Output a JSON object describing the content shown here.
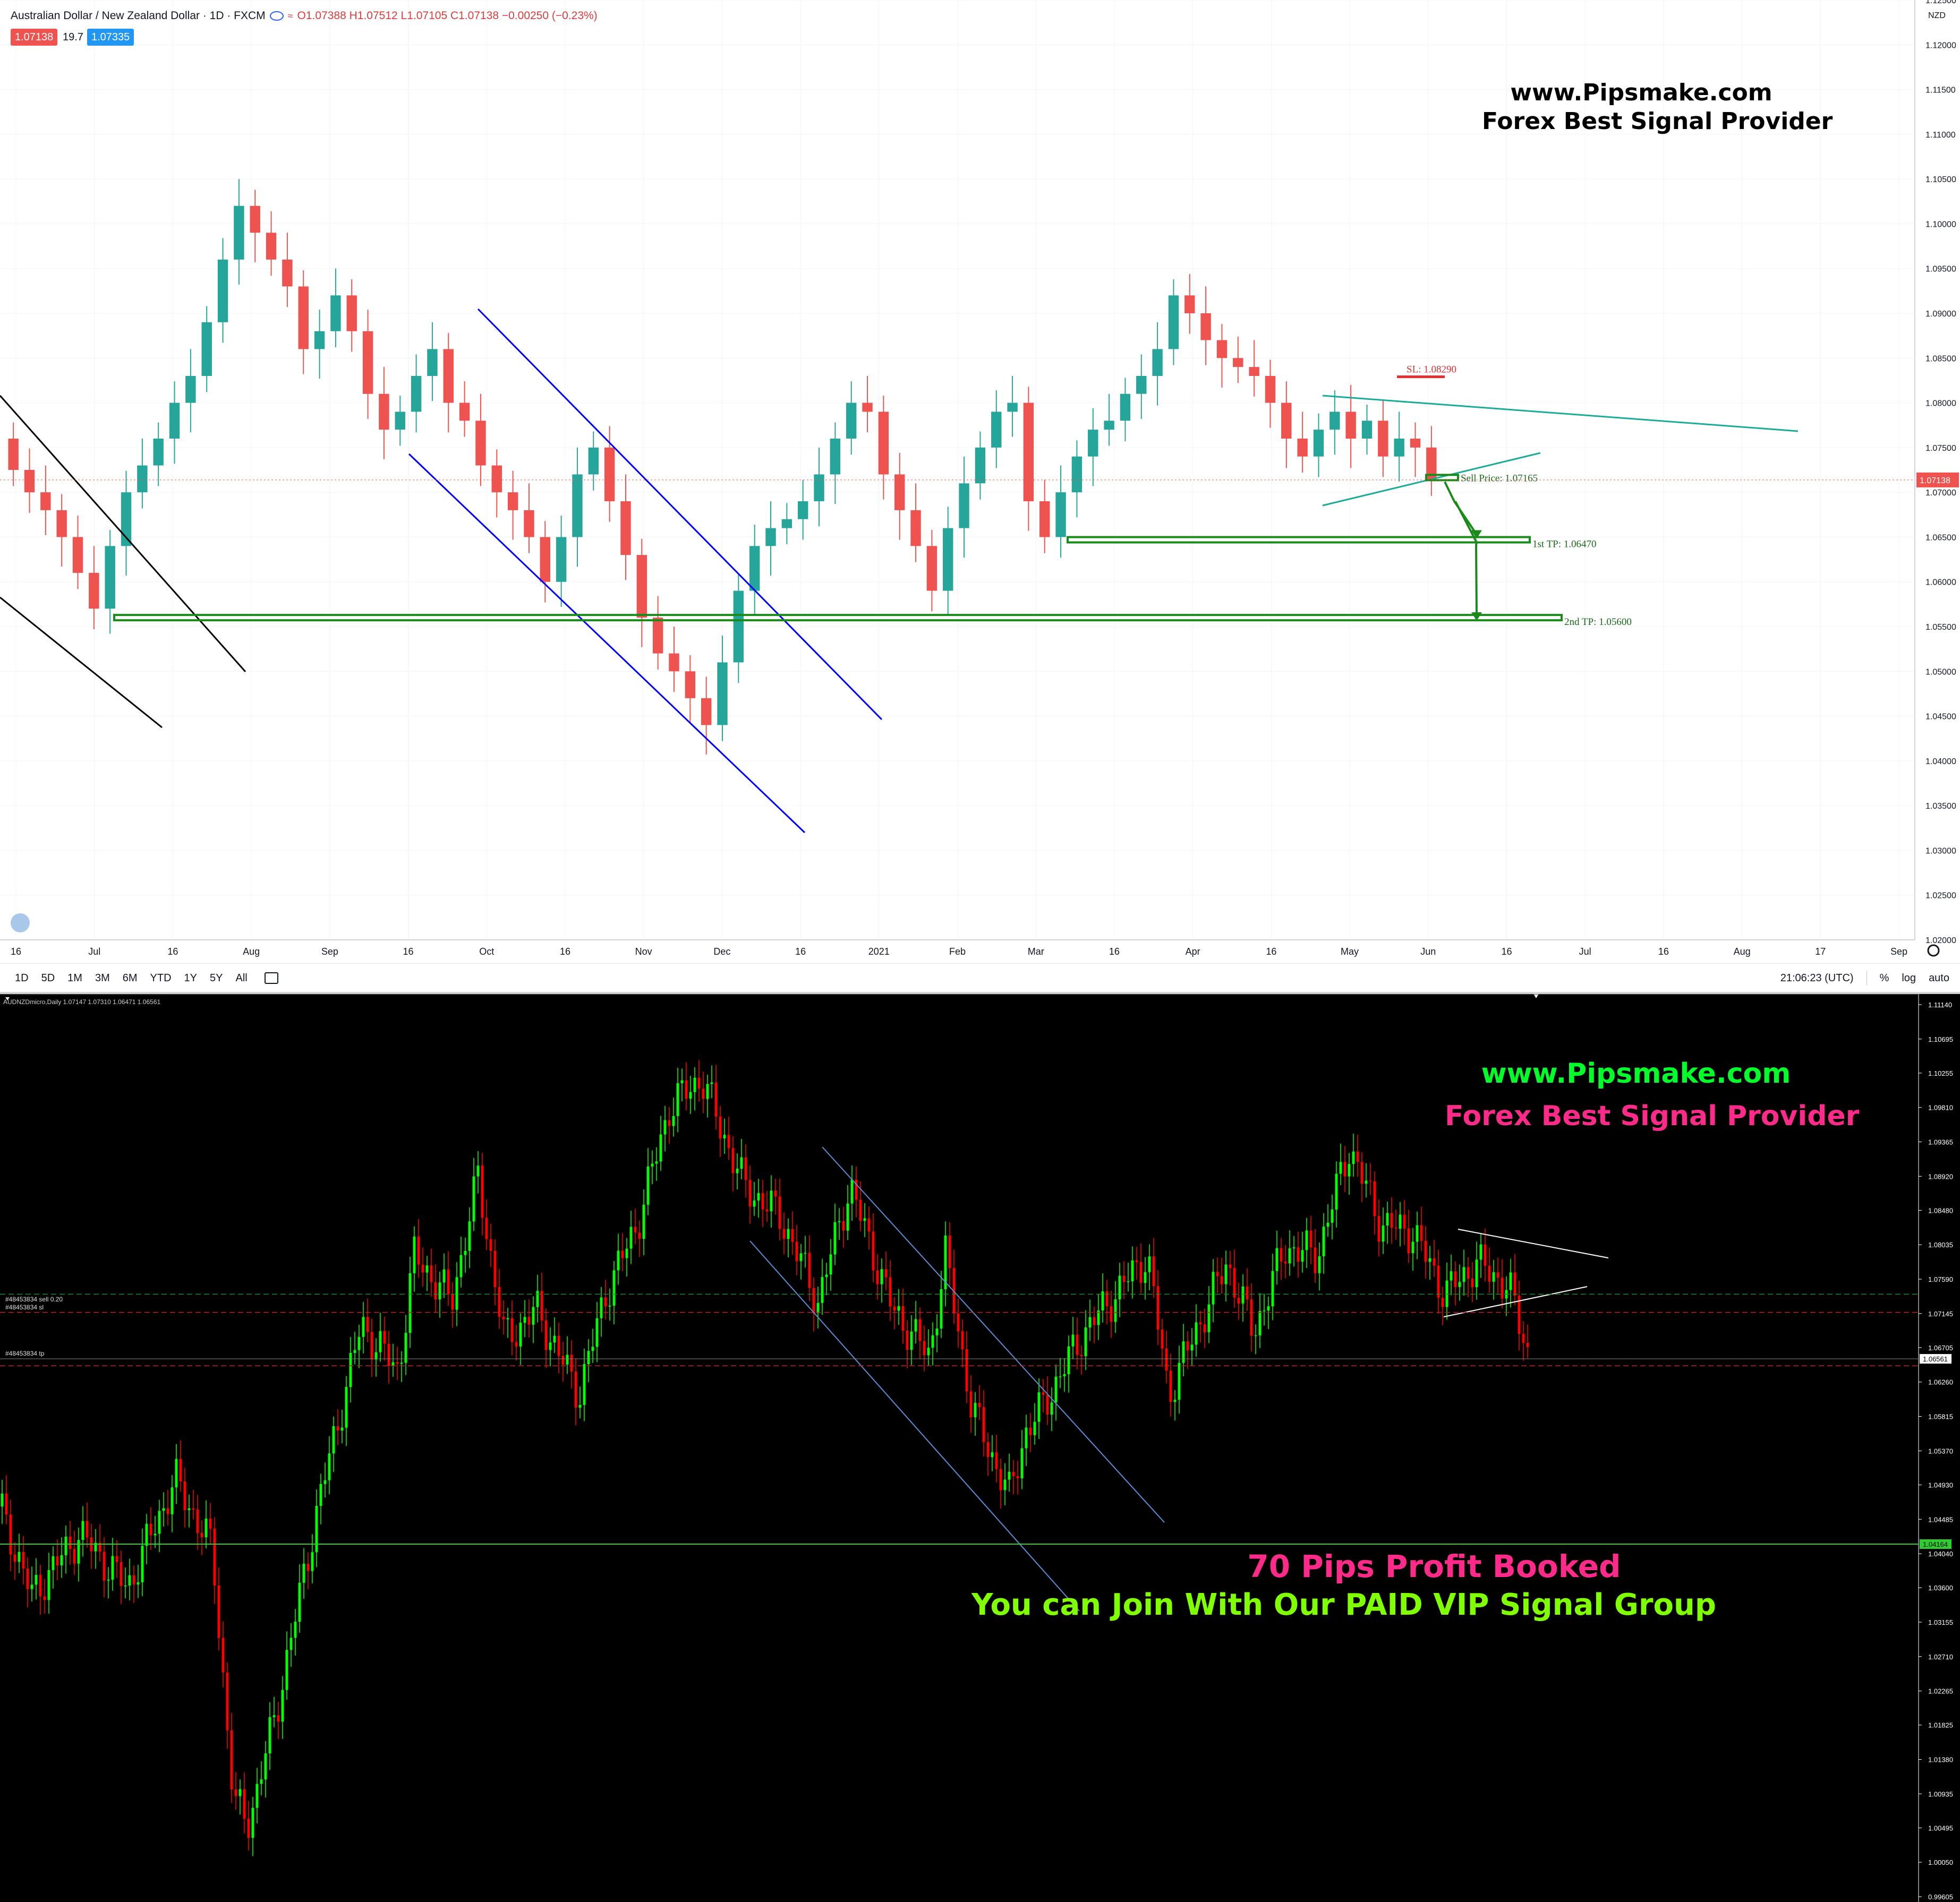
{
  "tradingview": {
    "symbol": "Australian Dollar / New Zealand Dollar · 1D · FXCM",
    "ohlc": "O1.07388 H1.07512 L1.07105 C1.07138 −0.00250 (−0.23%)",
    "sell_price_chip": "1.07138",
    "spread": "19.7",
    "buy_price_chip": "1.07335",
    "currency": "NZD",
    "last_price_label": "1.07138",
    "brand_line1": "www.Pipsmake.com",
    "brand_line2": "Forex Best Signal Provider",
    "annotations": {
      "sl": "SL: 1.08290",
      "sell": "Sell  Price: 1.07165",
      "tp1": "1st TP: 1.06470",
      "tp2": "2nd TP: 1.05600"
    },
    "timeframes": [
      "1D",
      "5D",
      "1M",
      "3M",
      "6M",
      "YTD",
      "1Y",
      "5Y",
      "All"
    ],
    "clock": "21:06:23 (UTC)",
    "scale_options": [
      "%",
      "log",
      "auto"
    ]
  },
  "chart_data": [
    {
      "type": "candlestick",
      "title": "Australian Dollar / New Zealand Dollar · 1D · FXCM",
      "y_ticks": [
        "1.12500",
        "1.12000",
        "1.11500",
        "1.11000",
        "1.10500",
        "1.10000",
        "1.09500",
        "1.09000",
        "1.08500",
        "1.08000",
        "1.07500",
        "1.07000",
        "1.06500",
        "1.06000",
        "1.05500",
        "1.05000",
        "1.04500",
        "1.04000",
        "1.03500",
        "1.03000",
        "1.02500",
        "1.02000"
      ],
      "ylim": [
        1.02,
        1.125
      ],
      "x_ticks": [
        "16",
        "Jul",
        "16",
        "Aug",
        "Sep",
        "16",
        "Oct",
        "16",
        "Nov",
        "Dec",
        "16",
        "2021",
        "Feb",
        "Mar",
        "16",
        "Apr",
        "16",
        "May",
        "Jun",
        "16",
        "Jul",
        "16",
        "Aug",
        "17",
        "Sep"
      ],
      "levels": {
        "sl": 1.0829,
        "sell": 1.07165,
        "tp1": 1.0647,
        "tp2": 1.056
      },
      "closes": [
        1.0725,
        1.07,
        1.068,
        1.065,
        1.061,
        1.057,
        1.064,
        1.07,
        1.073,
        1.076,
        1.08,
        1.083,
        1.089,
        1.096,
        1.102,
        1.099,
        1.096,
        1.093,
        1.086,
        1.088,
        1.092,
        1.088,
        1.081,
        1.077,
        1.079,
        1.083,
        1.086,
        1.08,
        1.078,
        1.073,
        1.07,
        1.068,
        1.065,
        1.06,
        1.065,
        1.072,
        1.075,
        1.069,
        1.063,
        1.056,
        1.052,
        1.05,
        1.047,
        1.044,
        1.051,
        1.059,
        1.064,
        1.066,
        1.067,
        1.069,
        1.072,
        1.076,
        1.08,
        1.079,
        1.072,
        1.068,
        1.064,
        1.059,
        1.066,
        1.071,
        1.075,
        1.079,
        1.08,
        1.069,
        1.065,
        1.07,
        1.074,
        1.077,
        1.078,
        1.081,
        1.083,
        1.086,
        1.092,
        1.09,
        1.087,
        1.085,
        1.084,
        1.083,
        1.08,
        1.076,
        1.074,
        1.077,
        1.079,
        1.076,
        1.078,
        1.074,
        1.076,
        1.075,
        1.0714
      ]
    },
    {
      "type": "candlestick",
      "title": "AUDNZDmicro,Daily  1.07147 1.07310 1.06471 1.06561",
      "y_ticks": [
        "1.11140",
        "1.10695",
        "1.10255",
        "1.09810",
        "1.09365",
        "1.08920",
        "1.08480",
        "1.08035",
        "1.07590",
        "1.07145",
        "1.06705",
        "1.06260",
        "1.05815",
        "1.05370",
        "1.04930",
        "1.04485",
        "1.04040",
        "1.03600",
        "1.03155",
        "1.02710",
        "1.02265",
        "1.01825",
        "1.01380",
        "1.00935",
        "1.00495",
        "1.00050",
        "0.99605"
      ],
      "ylim": [
        0.99605,
        1.1114
      ],
      "last_price": "1.06561",
      "line_price": "1.04164"
    }
  ],
  "metatrader": {
    "header": "AUDNZDmicro,Daily  1.07147 1.07310 1.06471 1.06561",
    "positions": [
      "#48453834 sell 0.20",
      "#48453834 sl",
      "#48453834 tp"
    ],
    "last_price_label": "1.06561",
    "green_line_label": "1.04164",
    "brand_line1": "www.Pipsmake.com",
    "brand_line2": "Forex Best Signal Provider",
    "profit_text": "70 Pips Profit Booked",
    "join_text": "You can Join With Our PAID VIP Signal Group",
    "colors": {
      "bull": "#00ff00",
      "bear": "#ff0000",
      "profit": "#ff2a8a",
      "join": "#7fff00"
    }
  }
}
